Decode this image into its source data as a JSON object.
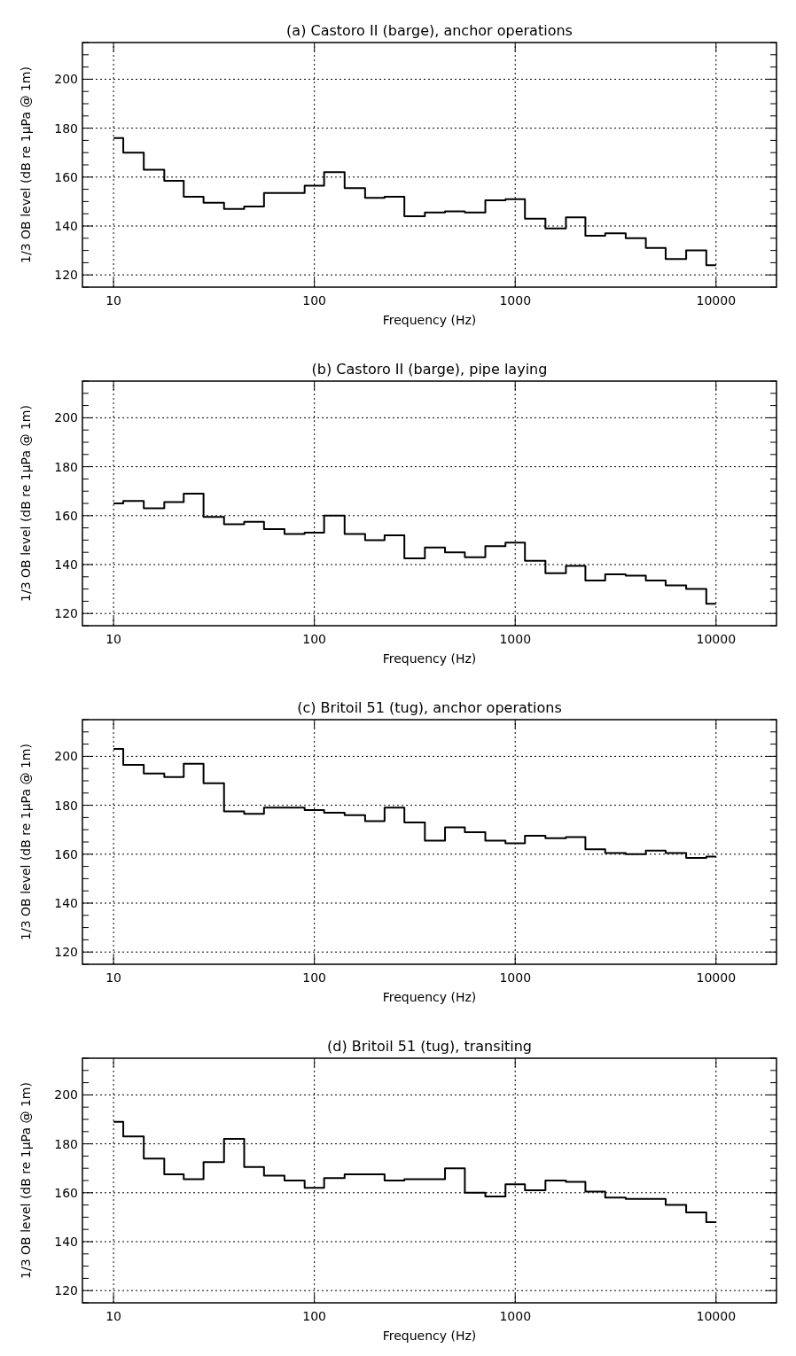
{
  "chart_data": [
    {
      "type": "step",
      "title": "(a) Castoro II (barge), anchor operations",
      "xlabel": "Frequency (Hz)",
      "ylabel": "1/3 OB level (dB re 1μPa @ 1m)",
      "log": "x",
      "grid": true,
      "xlim": [
        7,
        20000
      ],
      "xticks": [
        10,
        100,
        1000,
        10000
      ],
      "ylim": [
        115,
        215
      ],
      "yticks": [
        {
          "value": 115,
          "label": null
        },
        120,
        {
          "value": 125,
          "label": null
        },
        {
          "value": 130,
          "label": null
        },
        {
          "value": 135,
          "label": null
        },
        140,
        {
          "value": 145,
          "label": null
        },
        {
          "value": 150,
          "label": null
        },
        {
          "value": 155,
          "label": null
        },
        160,
        {
          "value": 165,
          "label": null
        },
        {
          "value": 170,
          "label": null
        },
        {
          "value": 175,
          "label": null
        },
        180,
        {
          "value": 185,
          "label": null
        },
        {
          "value": 190,
          "label": null
        },
        {
          "value": 195,
          "label": null
        },
        200,
        {
          "value": 205,
          "label": null
        },
        {
          "value": 210,
          "label": null
        },
        {
          "value": 215,
          "label": null
        }
      ],
      "x": [
        10,
        12.5,
        16,
        20,
        25,
        31.5,
        40,
        50,
        63,
        80,
        100,
        125,
        160,
        200,
        250,
        315,
        400,
        500,
        630,
        800,
        1000,
        1250,
        1600,
        2000,
        2500,
        3150,
        4000,
        5000,
        6300,
        8000,
        10000
      ],
      "series": [
        {
          "color": "#000000",
          "values": [
            176,
            170,
            163,
            158.5,
            152,
            149.5,
            147,
            148,
            153.5,
            153.5,
            156.5,
            162,
            155.5,
            151.5,
            152,
            144,
            145.5,
            146,
            145.5,
            150.5,
            151,
            143,
            139,
            143.5,
            136,
            137,
            135,
            131,
            126.5,
            130,
            124
          ]
        }
      ]
    },
    {
      "type": "step",
      "title": "(b) Castoro II (barge), pipe laying",
      "xlabel": "Frequency (Hz)",
      "ylabel": "1/3 OB level (dB re 1μPa @ 1m)",
      "log": "x",
      "grid": true,
      "xlim": [
        7,
        20000
      ],
      "xticks": [
        10,
        100,
        1000,
        10000
      ],
      "ylim": [
        115,
        215
      ],
      "yticks": [
        {
          "value": 115,
          "label": null
        },
        120,
        {
          "value": 125,
          "label": null
        },
        {
          "value": 130,
          "label": null
        },
        {
          "value": 135,
          "label": null
        },
        140,
        {
          "value": 145,
          "label": null
        },
        {
          "value": 150,
          "label": null
        },
        {
          "value": 155,
          "label": null
        },
        160,
        {
          "value": 165,
          "label": null
        },
        {
          "value": 170,
          "label": null
        },
        {
          "value": 175,
          "label": null
        },
        180,
        {
          "value": 185,
          "label": null
        },
        {
          "value": 190,
          "label": null
        },
        {
          "value": 195,
          "label": null
        },
        200,
        {
          "value": 205,
          "label": null
        },
        {
          "value": 210,
          "label": null
        },
        {
          "value": 215,
          "label": null
        }
      ],
      "x": [
        10,
        12.5,
        16,
        20,
        25,
        31.5,
        40,
        50,
        63,
        80,
        100,
        125,
        160,
        200,
        250,
        315,
        400,
        500,
        630,
        800,
        1000,
        1250,
        1600,
        2000,
        2500,
        3150,
        4000,
        5000,
        6300,
        8000,
        10000
      ],
      "series": [
        {
          "color": "#000000",
          "values": [
            165,
            166,
            163,
            165.5,
            169,
            159.5,
            156.5,
            157.5,
            154.5,
            152.5,
            153,
            160,
            152.5,
            150,
            152,
            142.5,
            147,
            145,
            143,
            147.5,
            149,
            141.5,
            136.5,
            139.5,
            133.5,
            136,
            135.5,
            133.5,
            131.5,
            130,
            124
          ]
        }
      ]
    },
    {
      "type": "step",
      "title": "(c) Britoil 51 (tug), anchor operations",
      "xlabel": "Frequency (Hz)",
      "ylabel": "1/3 OB level (dB re 1μPa @ 1m)",
      "log": "x",
      "grid": true,
      "xlim": [
        7,
        20000
      ],
      "xticks": [
        10,
        100,
        1000,
        10000
      ],
      "ylim": [
        115,
        215
      ],
      "yticks": [
        {
          "value": 115,
          "label": null
        },
        120,
        {
          "value": 125,
          "label": null
        },
        {
          "value": 130,
          "label": null
        },
        {
          "value": 135,
          "label": null
        },
        140,
        {
          "value": 145,
          "label": null
        },
        {
          "value": 150,
          "label": null
        },
        {
          "value": 155,
          "label": null
        },
        160,
        {
          "value": 165,
          "label": null
        },
        {
          "value": 170,
          "label": null
        },
        {
          "value": 175,
          "label": null
        },
        180,
        {
          "value": 185,
          "label": null
        },
        {
          "value": 190,
          "label": null
        },
        {
          "value": 195,
          "label": null
        },
        200,
        {
          "value": 205,
          "label": null
        },
        {
          "value": 210,
          "label": null
        },
        {
          "value": 215,
          "label": null
        }
      ],
      "x": [
        10,
        12.5,
        16,
        20,
        25,
        31.5,
        40,
        50,
        63,
        80,
        100,
        125,
        160,
        200,
        250,
        315,
        400,
        500,
        630,
        800,
        1000,
        1250,
        1600,
        2000,
        2500,
        3150,
        4000,
        5000,
        6300,
        8000,
        10000
      ],
      "series": [
        {
          "color": "#000000",
          "values": [
            203,
            196.5,
            193,
            191.5,
            197,
            189,
            177.5,
            176.5,
            179,
            179,
            178,
            177,
            176,
            173.5,
            179,
            173,
            165.5,
            171,
            169,
            165.5,
            164.5,
            167.5,
            166.5,
            167,
            162,
            160.5,
            160,
            161.5,
            160.5,
            158.5,
            159
          ]
        }
      ]
    },
    {
      "type": "step",
      "title": "(d) Britoil 51 (tug), transiting",
      "xlabel": "Frequency (Hz)",
      "ylabel": "1/3 OB level (dB re 1μPa @ 1m)",
      "log": "x",
      "grid": true,
      "xlim": [
        7,
        20000
      ],
      "xticks": [
        10,
        100,
        1000,
        10000
      ],
      "ylim": [
        115,
        215
      ],
      "yticks": [
        {
          "value": 115,
          "label": null
        },
        120,
        {
          "value": 125,
          "label": null
        },
        {
          "value": 130,
          "label": null
        },
        {
          "value": 135,
          "label": null
        },
        140,
        {
          "value": 145,
          "label": null
        },
        {
          "value": 150,
          "label": null
        },
        {
          "value": 155,
          "label": null
        },
        160,
        {
          "value": 165,
          "label": null
        },
        {
          "value": 170,
          "label": null
        },
        {
          "value": 175,
          "label": null
        },
        180,
        {
          "value": 185,
          "label": null
        },
        {
          "value": 190,
          "label": null
        },
        {
          "value": 195,
          "label": null
        },
        200,
        {
          "value": 205,
          "label": null
        },
        {
          "value": 210,
          "label": null
        },
        {
          "value": 215,
          "label": null
        }
      ],
      "x": [
        10,
        12.5,
        16,
        20,
        25,
        31.5,
        40,
        50,
        63,
        80,
        100,
        125,
        160,
        200,
        250,
        315,
        400,
        500,
        630,
        800,
        1000,
        1250,
        1600,
        2000,
        2500,
        3150,
        4000,
        5000,
        6300,
        8000,
        10000
      ],
      "series": [
        {
          "color": "#000000",
          "values": [
            189,
            183,
            174,
            167.5,
            165.5,
            172.5,
            182,
            170.5,
            167,
            165,
            162,
            166,
            167.5,
            167.5,
            165,
            165.5,
            165.5,
            170,
            160,
            158.5,
            163.5,
            161,
            165,
            164.5,
            160.5,
            158,
            157.5,
            157.5,
            155,
            152,
            148
          ]
        }
      ]
    }
  ]
}
